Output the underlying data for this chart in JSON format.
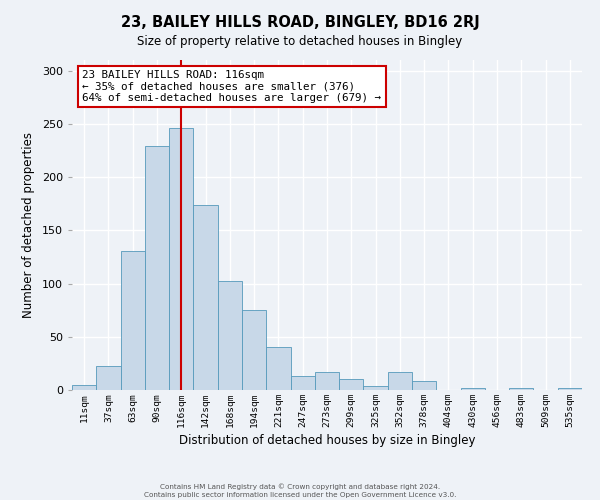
{
  "title": "23, BAILEY HILLS ROAD, BINGLEY, BD16 2RJ",
  "subtitle": "Size of property relative to detached houses in Bingley",
  "xlabel": "Distribution of detached houses by size in Bingley",
  "ylabel": "Number of detached properties",
  "bin_labels": [
    "11sqm",
    "37sqm",
    "63sqm",
    "90sqm",
    "116sqm",
    "142sqm",
    "168sqm",
    "194sqm",
    "221sqm",
    "247sqm",
    "273sqm",
    "299sqm",
    "325sqm",
    "352sqm",
    "378sqm",
    "404sqm",
    "430sqm",
    "456sqm",
    "483sqm",
    "509sqm",
    "535sqm"
  ],
  "bar_values": [
    5,
    23,
    131,
    229,
    246,
    174,
    102,
    75,
    40,
    13,
    17,
    10,
    4,
    17,
    8,
    0,
    2,
    0,
    2,
    0,
    2
  ],
  "bar_color": "#c8d8e8",
  "bar_edgecolor": "#5599bb",
  "vline_index": 4,
  "vline_color": "#cc0000",
  "annotation_text": "23 BAILEY HILLS ROAD: 116sqm\n← 35% of detached houses are smaller (376)\n64% of semi-detached houses are larger (679) →",
  "annotation_box_facecolor": "#ffffff",
  "annotation_box_edgecolor": "#cc0000",
  "ylim": [
    0,
    310
  ],
  "yticks": [
    0,
    50,
    100,
    150,
    200,
    250,
    300
  ],
  "footer_line1": "Contains HM Land Registry data © Crown copyright and database right 2024.",
  "footer_line2": "Contains public sector information licensed under the Open Government Licence v3.0.",
  "bg_color": "#eef2f7",
  "grid_color": "#ffffff"
}
